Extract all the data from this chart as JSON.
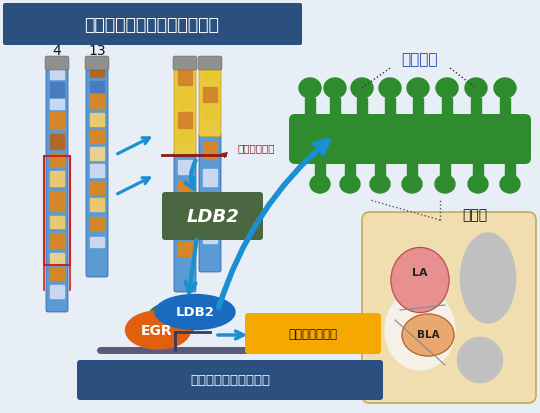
{
  "title": "均衡型染色体転座を持つ症例",
  "title_bg": "#2b5080",
  "title_color": "#ffffff",
  "bg_color": "#e8eef5",
  "chr4_label": "4",
  "chr13_label": "13",
  "ldb2_box_color": "#4a6741",
  "ldb2_box_text": "LDB2",
  "ldb2_protein_color": "#1a6abf",
  "ldb2_protein_text": "LDB2",
  "egr_color": "#e06010",
  "egr_text": "EGR",
  "gene_reg_bg": "#f5a800",
  "gene_reg_text": "遺伝子発現調節",
  "synapse_text": "シナプス関連遺伝子群",
  "synapse_bg": "#2b5080",
  "synapse_color": "#ffffff",
  "spine_label": "スパイン",
  "amygdala_label": "扁桃体",
  "chromosome_cut_label": "染色体切断点",
  "cut_label_color": "#8b1a1a",
  "arrow_color": "#1a90d0",
  "dotted_line_color": "#555555",
  "chr_blue": "#5b9bd5",
  "chr_blue_edge": "#2a5a9a",
  "chr_orange": "#d4862a",
  "chr_yellow": "#e8c830",
  "chr_gray_cap": "#909090",
  "green_spine": "#2e8b2e",
  "spine_label_color": "#2244aa"
}
